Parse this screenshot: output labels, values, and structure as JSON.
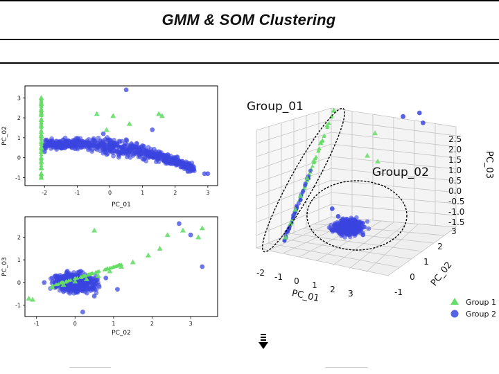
{
  "header": {
    "title": "GMM & SOM Clustering"
  },
  "colors": {
    "group_1": "#66dd66",
    "group_2": "#3a45e0",
    "frame": "#000000",
    "grid": "#bdbdbd"
  },
  "chart_data": [
    {
      "type": "scatter",
      "title": "",
      "xlabel": "PC_01",
      "ylabel": "PC_02",
      "xlim": [
        -2.6,
        3.3
      ],
      "ylim": [
        -1.4,
        3.6
      ],
      "xticks": [
        "-2",
        "-1",
        "0",
        "1",
        "2",
        "3"
      ],
      "yticks": [
        "-1",
        "0",
        "1",
        "2",
        "3"
      ],
      "series": [
        {
          "name": "Group 1",
          "marker": "triangle",
          "points": [
            [
              -2.1,
              3.0
            ],
            [
              -2.1,
              2.7
            ],
            [
              -2.1,
              2.4
            ],
            [
              -2.1,
              2.2
            ],
            [
              -2.1,
              1.9
            ],
            [
              -2.1,
              1.6
            ],
            [
              -2.1,
              1.3
            ],
            [
              -2.1,
              1.1
            ],
            [
              -2.1,
              0.8
            ],
            [
              -2.1,
              0.5
            ],
            [
              -2.1,
              0.3
            ],
            [
              -2.1,
              0.0
            ],
            [
              -2.1,
              -0.2
            ],
            [
              -2.1,
              -0.5
            ],
            [
              -2.1,
              -0.8
            ],
            [
              -2.1,
              -1.0
            ],
            [
              -0.4,
              2.2
            ],
            [
              0.1,
              2.1
            ],
            [
              0.6,
              1.7
            ],
            [
              1.5,
              2.2
            ],
            [
              1.6,
              2.1
            ],
            [
              -0.1,
              1.4
            ]
          ]
        },
        {
          "name": "Group 2",
          "marker": "circle",
          "points": [
            [
              -2.0,
              0.3
            ],
            [
              -1.5,
              0.5
            ],
            [
              -1.0,
              0.5
            ],
            [
              -0.5,
              0.6
            ],
            [
              0.0,
              0.7
            ],
            [
              0.5,
              0.9
            ],
            [
              1.0,
              0.6
            ],
            [
              1.5,
              0.3
            ],
            [
              2.0,
              0.0
            ],
            [
              2.4,
              -0.5
            ],
            [
              0.5,
              3.4
            ],
            [
              -0.2,
              1.2
            ],
            [
              1.3,
              1.4
            ],
            [
              2.9,
              -0.8
            ],
            [
              3.0,
              -0.8
            ]
          ]
        }
      ]
    },
    {
      "type": "scatter",
      "title": "",
      "xlabel": "PC_02",
      "ylabel": "PC_03",
      "xlim": [
        -1.3,
        3.7
      ],
      "ylim": [
        -1.5,
        2.9
      ],
      "xticks": [
        "-1",
        "0",
        "1",
        "2",
        "3"
      ],
      "yticks": [
        "-1",
        "0",
        "1",
        "2"
      ],
      "series": [
        {
          "name": "Group 1",
          "marker": "triangle",
          "points": [
            [
              -1.2,
              -0.7
            ],
            [
              -1.1,
              -0.75
            ],
            [
              -0.6,
              -0.2
            ],
            [
              -0.3,
              -0.1
            ],
            [
              0.0,
              0.05
            ],
            [
              0.3,
              0.15
            ],
            [
              0.6,
              0.3
            ],
            [
              0.9,
              0.5
            ],
            [
              1.2,
              0.7
            ],
            [
              1.5,
              0.9
            ],
            [
              1.9,
              1.2
            ],
            [
              2.2,
              1.5
            ],
            [
              2.4,
              2.1
            ],
            [
              2.8,
              2.3
            ],
            [
              3.2,
              2.0
            ],
            [
              3.3,
              2.4
            ],
            [
              0.5,
              2.3
            ]
          ]
        },
        {
          "name": "Group 2",
          "marker": "circle",
          "points": [
            [
              -0.8,
              0.0
            ],
            [
              -0.5,
              0.3
            ],
            [
              -0.2,
              0.5
            ],
            [
              0.0,
              0.0
            ],
            [
              0.3,
              -0.3
            ],
            [
              0.5,
              -0.6
            ],
            [
              -0.3,
              -0.4
            ],
            [
              0.8,
              0.2
            ],
            [
              1.1,
              -0.3
            ],
            [
              2.7,
              2.6
            ],
            [
              3.0,
              2.1
            ],
            [
              3.3,
              0.7
            ],
            [
              0.2,
              -1.3
            ]
          ]
        }
      ]
    },
    {
      "type": "scatter",
      "title": "",
      "xlabel": "PC_01",
      "ylabel": "PC_02",
      "zlabel": "PC_03",
      "xticks": [
        "-2",
        "-1",
        "0",
        "1",
        "2",
        "3"
      ],
      "yticks": [
        "-1",
        "0",
        "1",
        "2",
        "3"
      ],
      "zticks": [
        "2.5",
        "2.0",
        "1.5",
        "1.0",
        "0.5",
        "0.0",
        "-0.5",
        "-1.0",
        "-1.5"
      ],
      "annotations": [
        "Group_01",
        "Group_02"
      ],
      "legend": {
        "location": "bottom-right",
        "entries": [
          "Group 1",
          "Group 2"
        ]
      },
      "series": [
        {
          "name": "Group 1",
          "marker": "triangle",
          "points": [
            [
              -2.1,
              -0.8,
              -1.2
            ],
            [
              -2.1,
              -0.5,
              -0.8
            ],
            [
              -2.1,
              -0.2,
              -0.4
            ],
            [
              -2.1,
              0.1,
              0.0
            ],
            [
              -2.1,
              0.5,
              0.5
            ],
            [
              -2.1,
              0.9,
              1.0
            ],
            [
              -2.1,
              1.3,
              1.5
            ],
            [
              -2.1,
              1.7,
              2.0
            ],
            [
              -2.1,
              2.1,
              2.4
            ],
            [
              -0.4,
              2.2,
              1.0
            ],
            [
              0.1,
              2.1,
              2.0
            ],
            [
              0.6,
              1.7,
              1.2
            ]
          ]
        },
        {
          "name": "Group 2",
          "marker": "circle",
          "points": [
            [
              0.0,
              0.0,
              -0.3
            ],
            [
              0.5,
              0.3,
              -0.5
            ],
            [
              1.0,
              0.1,
              -0.4
            ],
            [
              -0.5,
              0.2,
              -0.2
            ],
            [
              1.5,
              -0.2,
              -0.6
            ],
            [
              0.8,
              3.0,
              2.4
            ],
            [
              1.5,
              3.2,
              2.6
            ],
            [
              1.6,
              3.3,
              2.2
            ]
          ]
        }
      ]
    }
  ]
}
